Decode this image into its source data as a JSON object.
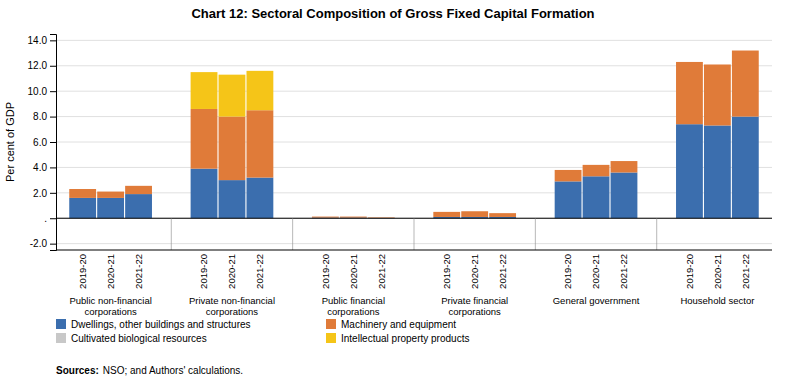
{
  "chart_data": {
    "type": "bar",
    "stacked": true,
    "title": "Chart 12: Sectoral Composition of Gross Fixed Capital Formation",
    "y_label": "Per cent of GDP",
    "source": {
      "label": "Sources:",
      "text": "NSO; and Authors' calculations."
    },
    "groups": [
      "Public non-financial\ncorporations",
      "Private non-financial\ncorporations",
      "Public financial\ncorporations",
      "Private financial\ncorporations",
      "General government",
      "Household sector"
    ],
    "categories": [
      "2019-20",
      "2020-21",
      "2021-22"
    ],
    "series": [
      {
        "name": "Dwellings, other buildings and structures",
        "color": "#3B6EAE",
        "values": [
          [
            1.6,
            1.6,
            1.9
          ],
          [
            3.9,
            3.0,
            3.2
          ],
          [
            0.05,
            0.05,
            0.02
          ],
          [
            0.1,
            0.1,
            0.1
          ],
          [
            2.9,
            3.3,
            3.6
          ],
          [
            7.4,
            7.3,
            8.0
          ]
        ]
      },
      {
        "name": "Machinery and equipment",
        "color": "#E07B39",
        "values": [
          [
            0.7,
            0.5,
            0.65
          ],
          [
            4.7,
            5.0,
            5.3
          ],
          [
            0.08,
            0.08,
            0.04
          ],
          [
            0.4,
            0.45,
            0.3
          ],
          [
            0.9,
            0.9,
            0.9
          ],
          [
            4.9,
            4.8,
            5.2
          ]
        ]
      },
      {
        "name": "Cultivated biological resources",
        "color": "#C8C8C8",
        "values": [
          [
            0.0,
            0.0,
            0.0
          ],
          [
            0.0,
            0.0,
            0.0
          ],
          [
            0.0,
            0.0,
            0.0
          ],
          [
            0.0,
            0.0,
            0.0
          ],
          [
            0.0,
            0.0,
            0.0
          ],
          [
            0.0,
            0.0,
            0.0
          ]
        ]
      },
      {
        "name": "Intellectual property products",
        "color": "#F5C518",
        "values": [
          [
            0.0,
            0.0,
            0.0
          ],
          [
            2.9,
            3.3,
            3.1
          ],
          [
            0.0,
            0.0,
            0.0
          ],
          [
            0.0,
            0.0,
            0.0
          ],
          [
            0.0,
            0.0,
            0.0
          ],
          [
            0.0,
            0.0,
            0.0
          ]
        ]
      }
    ],
    "ylim": [
      -2.5,
      14.5
    ],
    "yticks": [
      {
        "value": -2.0,
        "label": "-2.0"
      },
      {
        "value": 0.0,
        "label": "."
      },
      {
        "value": 2.0,
        "label": "2.0"
      },
      {
        "value": 4.0,
        "label": "4.0"
      },
      {
        "value": 6.0,
        "label": "6.0"
      },
      {
        "value": 8.0,
        "label": "8.0"
      },
      {
        "value": 10.0,
        "label": "10.0"
      },
      {
        "value": 12.0,
        "label": "12.0"
      },
      {
        "value": 14.0,
        "label": "14.0"
      }
    ],
    "grid": true,
    "legend": "bottom"
  }
}
